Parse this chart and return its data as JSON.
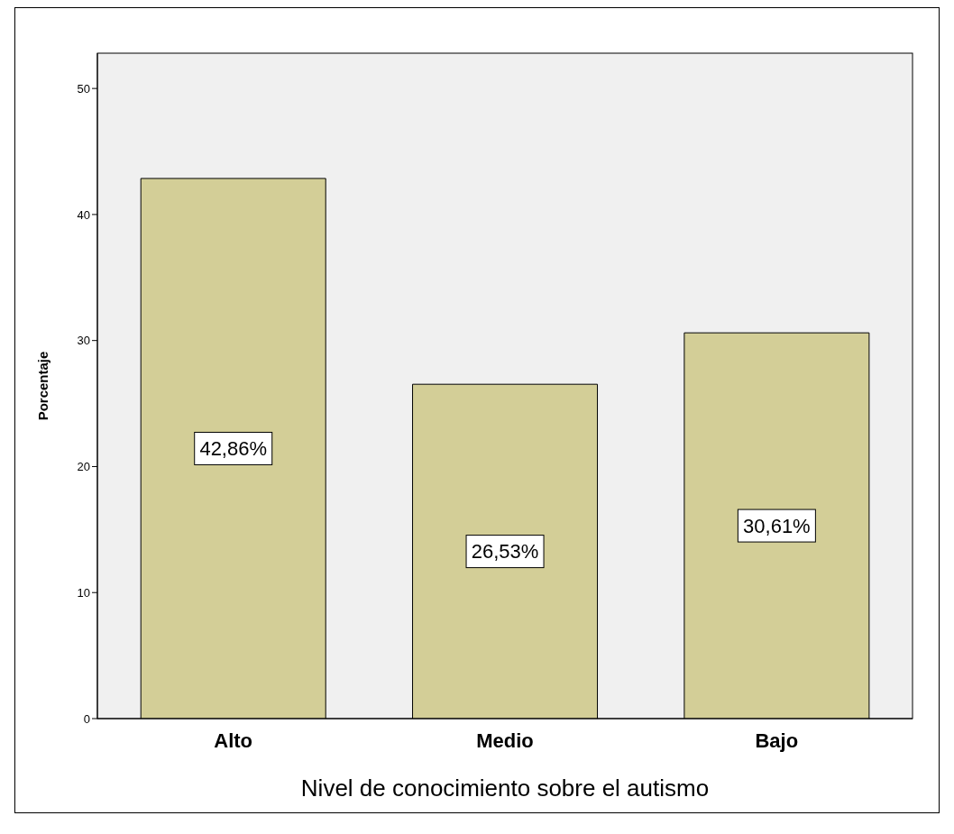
{
  "chart_data": {
    "type": "bar",
    "xlabel": "Nivel de conocimiento sobre el autismo",
    "ylabel": "Porcentaje",
    "categories": [
      "Alto",
      "Medio",
      "Bajo"
    ],
    "values": [
      42.86,
      26.53,
      30.61
    ],
    "value_labels": [
      "42,86%",
      "26,53%",
      "30,61%"
    ],
    "color": "#d3ce97",
    "ylim": [
      0,
      52.8
    ],
    "yticks": [
      0,
      10,
      20,
      30,
      40,
      50
    ]
  }
}
